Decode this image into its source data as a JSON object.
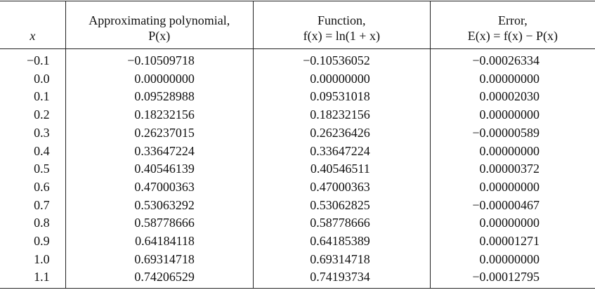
{
  "table": {
    "headers": {
      "x": "x",
      "p_line1": "Approximating polynomial,",
      "p_line2": "P(x)",
      "f_line1": "Function,",
      "f_line2": "f(x) = ln(1 + x)",
      "e_line1": "Error,",
      "e_line2": "E(x) = f(x) − P(x)"
    },
    "rows": [
      {
        "x": "−0.1",
        "p": "−0.10509718",
        "f": "−0.10536052",
        "e": "−0.00026334"
      },
      {
        "x": "0.0",
        "p": "0.00000000",
        "f": "0.00000000",
        "e": "0.00000000"
      },
      {
        "x": "0.1",
        "p": "0.09528988",
        "f": "0.09531018",
        "e": "0.00002030"
      },
      {
        "x": "0.2",
        "p": "0.18232156",
        "f": "0.18232156",
        "e": "0.00000000"
      },
      {
        "x": "0.3",
        "p": "0.26237015",
        "f": "0.26236426",
        "e": "−0.00000589"
      },
      {
        "x": "0.4",
        "p": "0.33647224",
        "f": "0.33647224",
        "e": "0.00000000"
      },
      {
        "x": "0.5",
        "p": "0.40546139",
        "f": "0.40546511",
        "e": "0.00000372"
      },
      {
        "x": "0.6",
        "p": "0.47000363",
        "f": "0.47000363",
        "e": "0.00000000"
      },
      {
        "x": "0.7",
        "p": "0.53063292",
        "f": "0.53062825",
        "e": "−0.00000467"
      },
      {
        "x": "0.8",
        "p": "0.58778666",
        "f": "0.58778666",
        "e": "0.00000000"
      },
      {
        "x": "0.9",
        "p": "0.64184118",
        "f": "0.64185389",
        "e": "0.00001271"
      },
      {
        "x": "1.0",
        "p": "0.69314718",
        "f": "0.69314718",
        "e": "0.00000000"
      },
      {
        "x": "1.1",
        "p": "0.74206529",
        "f": "0.74193734",
        "e": "−0.00012795"
      }
    ]
  }
}
